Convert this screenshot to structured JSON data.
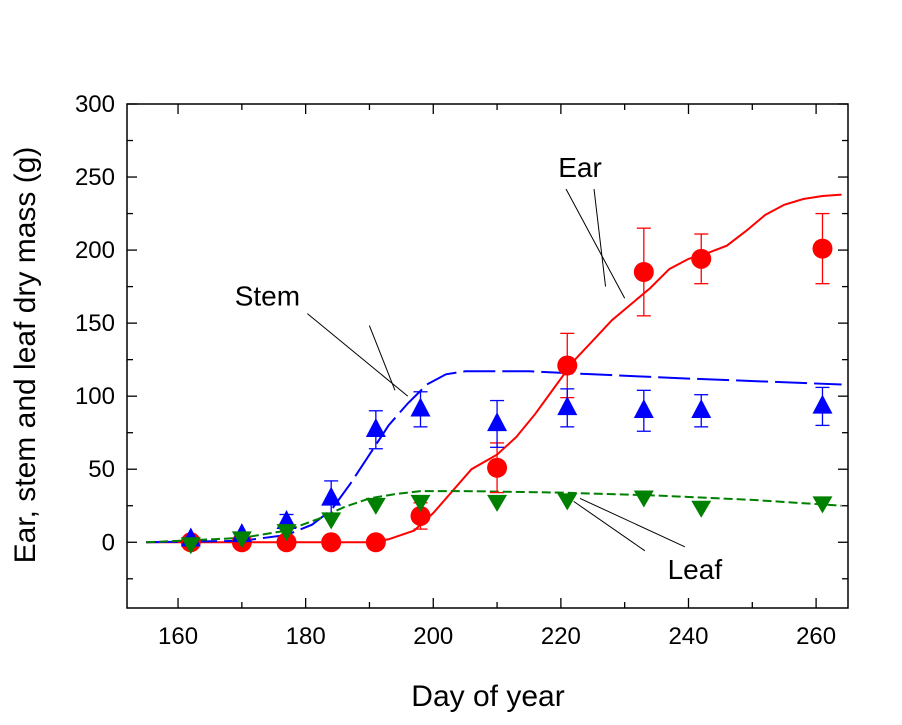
{
  "chart_data": {
    "type": "scatter",
    "xlabel": "Day of year",
    "ylabel": "Ear, stem and leaf dry mass (g)",
    "xlim": [
      152,
      265
    ],
    "ylim": [
      -45,
      300
    ],
    "x_ticks": [
      160,
      180,
      200,
      220,
      240,
      260
    ],
    "y_ticks": [
      0,
      50,
      100,
      150,
      200,
      250,
      300
    ],
    "grid": false,
    "series": [
      {
        "name": "Ear",
        "color": "#ff0000",
        "marker": "circle",
        "points": [
          {
            "x": 162,
            "y": 0
          },
          {
            "x": 170,
            "y": 0
          },
          {
            "x": 177,
            "y": 0
          },
          {
            "x": 184,
            "y": 0
          },
          {
            "x": 191,
            "y": 0
          },
          {
            "x": 198,
            "y": 18,
            "err": 9
          },
          {
            "x": 210,
            "y": 51,
            "err": 17
          },
          {
            "x": 221,
            "y": 121,
            "err": 22
          },
          {
            "x": 233,
            "y": 185,
            "err": 30
          },
          {
            "x": 242,
            "y": 194,
            "err": 17
          },
          {
            "x": 261,
            "y": 201,
            "err": 24
          }
        ],
        "model": {
          "style": "solid",
          "points": [
            [
              155,
              0
            ],
            [
              185,
              0
            ],
            [
              190,
              0
            ],
            [
              193,
              2
            ],
            [
              197,
              8
            ],
            [
              200,
              20
            ],
            [
              203,
              35
            ],
            [
              206,
              50
            ],
            [
              210,
              60
            ],
            [
              213,
              72
            ],
            [
              216,
              88
            ],
            [
              219,
              106
            ],
            [
              222,
              124
            ],
            [
              225,
              138
            ],
            [
              228,
              152
            ],
            [
              231,
              163
            ],
            [
              234,
              174
            ],
            [
              237,
              187
            ],
            [
              240,
              194
            ],
            [
              243,
              198
            ],
            [
              246,
              203
            ],
            [
              249,
              213
            ],
            [
              252,
              224
            ],
            [
              255,
              231
            ],
            [
              258,
              235
            ],
            [
              261,
              237
            ],
            [
              264,
              238
            ]
          ]
        }
      },
      {
        "name": "Stem",
        "color": "#0000ff",
        "marker": "triangle-up",
        "points": [
          {
            "x": 162,
            "y": 2
          },
          {
            "x": 170,
            "y": 5
          },
          {
            "x": 177,
            "y": 14,
            "err": 5
          },
          {
            "x": 184,
            "y": 30,
            "err": 12
          },
          {
            "x": 191,
            "y": 77,
            "err": 13
          },
          {
            "x": 198,
            "y": 91,
            "err": 12
          },
          {
            "x": 210,
            "y": 81,
            "err": 16
          },
          {
            "x": 221,
            "y": 92,
            "err": 13
          },
          {
            "x": 233,
            "y": 90,
            "err": 14
          },
          {
            "x": 242,
            "y": 90,
            "err": 11
          },
          {
            "x": 261,
            "y": 93,
            "err": 13
          }
        ],
        "model": {
          "style": "long-dash",
          "points": [
            [
              155,
              0
            ],
            [
              170,
              1
            ],
            [
              177,
              5
            ],
            [
              181,
              12
            ],
            [
              184,
              22
            ],
            [
              187,
              40
            ],
            [
              190,
              60
            ],
            [
              193,
              80
            ],
            [
              196,
              95
            ],
            [
              199,
              108
            ],
            [
              202,
              115
            ],
            [
              205,
              117
            ],
            [
              215,
              117
            ],
            [
              225,
              115
            ],
            [
              240,
              112
            ],
            [
              264,
              108
            ]
          ]
        }
      },
      {
        "name": "Leaf",
        "color": "#008000",
        "marker": "triangle-down",
        "points": [
          {
            "x": 162,
            "y": -1
          },
          {
            "x": 170,
            "y": 3
          },
          {
            "x": 177,
            "y": 8
          },
          {
            "x": 184,
            "y": 16
          },
          {
            "x": 191,
            "y": 26
          },
          {
            "x": 198,
            "y": 28
          },
          {
            "x": 210,
            "y": 28
          },
          {
            "x": 221,
            "y": 29
          },
          {
            "x": 233,
            "y": 31
          },
          {
            "x": 242,
            "y": 24
          },
          {
            "x": 261,
            "y": 27
          }
        ],
        "model": {
          "style": "short-dash",
          "points": [
            [
              155,
              0
            ],
            [
              170,
              3
            ],
            [
              177,
              8
            ],
            [
              182,
              16
            ],
            [
              186,
              24
            ],
            [
              190,
              30
            ],
            [
              194,
              33
            ],
            [
              198,
              35
            ],
            [
              205,
              35
            ],
            [
              220,
              34
            ],
            [
              235,
              32
            ],
            [
              250,
              29
            ],
            [
              264,
              25
            ]
          ]
        }
      }
    ],
    "annotations": [
      {
        "text": "Ear",
        "label_at": [
          223,
          250
        ],
        "arrow_tips": [
          [
            230,
            167
          ],
          [
            227,
            175
          ]
        ]
      },
      {
        "text": "Stem",
        "label_at": [
          174,
          162
        ],
        "arrow_tips": [
          [
            196,
            100
          ],
          [
            194,
            104
          ]
        ]
      },
      {
        "text": "Leaf",
        "label_at": [
          241,
          -25
        ],
        "arrow_tips": [
          [
            223,
            30
          ],
          [
            222,
            28
          ]
        ]
      }
    ]
  }
}
